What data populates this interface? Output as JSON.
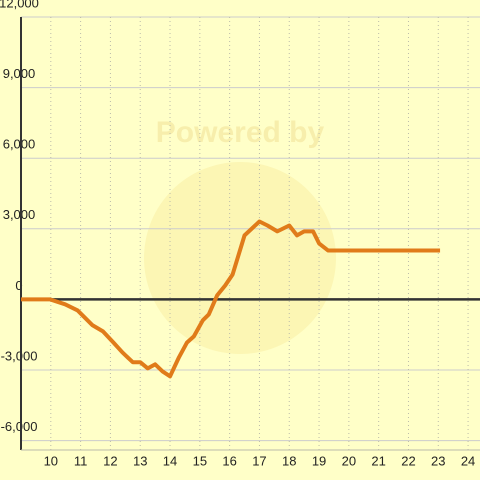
{
  "chart_data": {
    "type": "line",
    "watermark": "Powered by",
    "x": [
      9.0,
      9.97,
      10.48,
      10.9,
      11.4,
      11.75,
      12.1,
      12.4,
      12.75,
      13.0,
      13.25,
      13.5,
      13.75,
      14.0,
      14.3,
      14.57,
      14.8,
      15.1,
      15.3,
      15.58,
      15.85,
      16.1,
      16.5,
      17.0,
      17.27,
      17.6,
      18.0,
      18.26,
      18.5,
      18.8,
      19.0,
      19.3,
      23.06
    ],
    "series": [
      {
        "color": "#e07b1a",
        "values": [
          0,
          0,
          -210,
          -470,
          -1100,
          -1360,
          -1830,
          -2250,
          -2670,
          -2670,
          -2930,
          -2760,
          -3060,
          -3270,
          -2460,
          -1830,
          -1570,
          -890,
          -640,
          170,
          590,
          1060,
          2720,
          3310,
          3140,
          2890,
          3140,
          2720,
          2890,
          2890,
          2380,
          2080,
          2080
        ]
      }
    ],
    "xlim": [
      9,
      24.4
    ],
    "xticks": [
      10,
      11,
      12,
      13,
      14,
      15,
      16,
      17,
      18,
      19,
      20,
      21,
      22,
      23,
      24
    ],
    "ylim": [
      -6400,
      12000
    ],
    "yticks": [
      {
        "value": -6000,
        "label": "-6,000"
      },
      {
        "value": -3000,
        "label": "-3,000"
      },
      0,
      {
        "value": 3000,
        "label": "3,000"
      },
      {
        "value": 6000,
        "label": "6,000"
      },
      {
        "value": 9000,
        "label": "9,000"
      },
      {
        "value": 12000,
        "label": "12,000"
      }
    ],
    "grid": true
  }
}
